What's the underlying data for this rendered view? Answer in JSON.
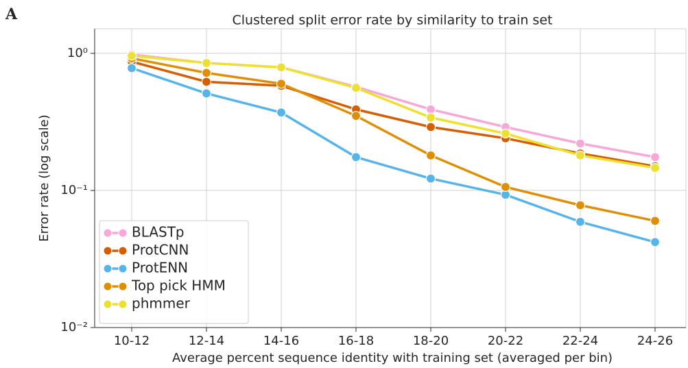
{
  "panel_label": "A",
  "chart_data": {
    "type": "line",
    "title": "Clustered split error rate by similarity to train set",
    "xlabel": "Average percent sequence identity with training set (averaged per bin)",
    "ylabel": "Error rate (log scale)",
    "categories": [
      "10-12",
      "12-14",
      "14-16",
      "16-18",
      "18-20",
      "20-22",
      "22-24",
      "24-26"
    ],
    "series": [
      {
        "name": "BLASTp",
        "color": "#f7a8d8",
        "values": [
          0.98,
          0.85,
          0.79,
          0.57,
          0.39,
          0.29,
          0.22,
          0.175
        ]
      },
      {
        "name": "ProtCNN",
        "color": "#d55e00",
        "values": [
          0.87,
          0.62,
          0.58,
          0.39,
          0.29,
          0.24,
          0.186,
          0.15
        ]
      },
      {
        "name": "ProtENN",
        "color": "#56b4e9",
        "values": [
          0.78,
          0.51,
          0.37,
          0.175,
          0.122,
          0.093,
          0.059,
          0.042
        ]
      },
      {
        "name": "Top pick HMM",
        "color": "#de8f05",
        "values": [
          0.92,
          0.72,
          0.6,
          0.35,
          0.18,
          0.106,
          0.078,
          0.06
        ]
      },
      {
        "name": "phmmer",
        "color": "#ece133",
        "values": [
          0.96,
          0.85,
          0.79,
          0.56,
          0.34,
          0.26,
          0.18,
          0.146
        ]
      }
    ],
    "ylog": true,
    "ylim": [
      0.01,
      1.51
    ],
    "yticks": [
      {
        "value": 1,
        "label": "10⁰"
      },
      {
        "value": 0.1,
        "label": "10⁻¹"
      },
      {
        "value": 0.01,
        "label": "10⁻²"
      }
    ],
    "grid": true,
    "legend": "lower left"
  }
}
